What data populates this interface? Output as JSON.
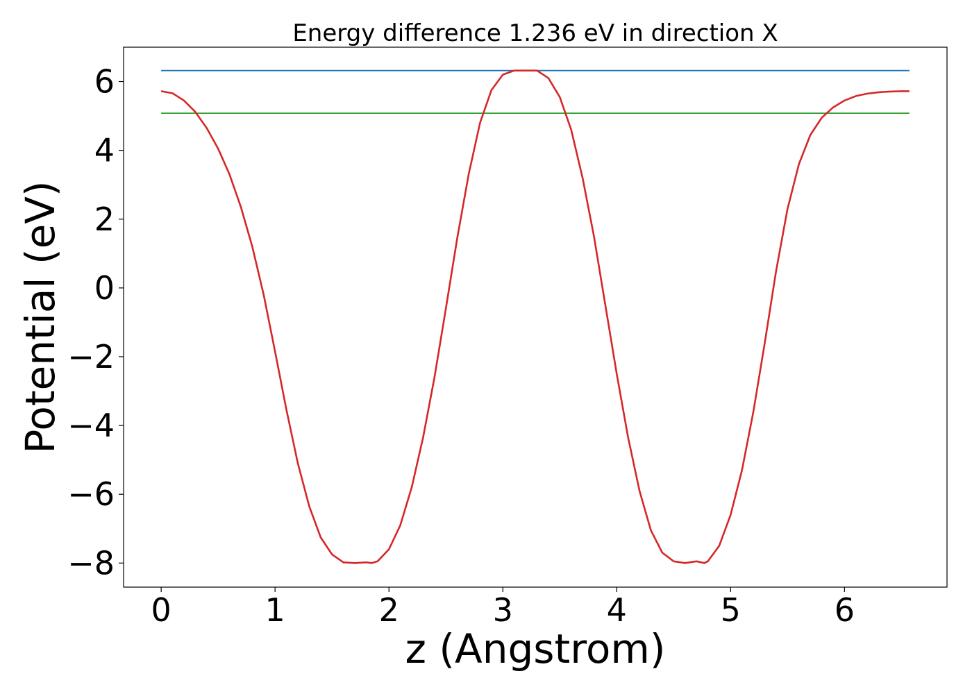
{
  "chart_data": {
    "type": "line",
    "title": "Energy difference 1.236 eV in direction X",
    "xlabel": "z (Angstrom)",
    "ylabel": "Potential (eV)",
    "xlim": [
      -0.33,
      6.9
    ],
    "ylim": [
      -8.7,
      7.0
    ],
    "xticks": [
      0,
      1,
      2,
      3,
      4,
      5,
      6
    ],
    "yticks": [
      6,
      4,
      2,
      0,
      -2,
      -4,
      -6,
      -8
    ],
    "xtick_labels": [
      "0",
      "1",
      "2",
      "3",
      "4",
      "5",
      "6"
    ],
    "ytick_labels": [
      "6",
      "4",
      "2",
      "0",
      "−2",
      "−4",
      "−6",
      "−8"
    ],
    "grid": false,
    "legend": "none",
    "series": [
      {
        "color": "#d62728",
        "x": [
          0.0,
          0.1,
          0.2,
          0.3,
          0.4,
          0.5,
          0.6,
          0.7,
          0.8,
          0.9,
          1.0,
          1.1,
          1.2,
          1.3,
          1.4,
          1.5,
          1.6,
          1.7,
          1.8,
          1.85,
          1.9,
          2.0,
          2.1,
          2.2,
          2.3,
          2.4,
          2.5,
          2.6,
          2.7,
          2.8,
          2.9,
          3.0,
          3.1,
          3.2,
          3.3,
          3.4,
          3.5,
          3.6,
          3.7,
          3.8,
          3.9,
          4.0,
          4.1,
          4.2,
          4.3,
          4.4,
          4.5,
          4.6,
          4.7,
          4.77,
          4.8,
          4.9,
          5.0,
          5.1,
          5.2,
          5.3,
          5.4,
          5.5,
          5.6,
          5.7,
          5.8,
          5.9,
          6.0,
          6.1,
          6.2,
          6.3,
          6.4,
          6.5,
          6.57
        ],
        "y": [
          5.72,
          5.66,
          5.45,
          5.12,
          4.65,
          4.05,
          3.3,
          2.35,
          1.2,
          -0.2,
          -1.85,
          -3.55,
          -5.1,
          -6.35,
          -7.25,
          -7.75,
          -7.98,
          -8.0,
          -7.98,
          -8.0,
          -7.95,
          -7.6,
          -6.9,
          -5.8,
          -4.35,
          -2.6,
          -0.6,
          1.45,
          3.3,
          4.8,
          5.75,
          6.2,
          6.32,
          6.32,
          6.32,
          6.1,
          5.55,
          4.6,
          3.2,
          1.5,
          -0.5,
          -2.5,
          -4.35,
          -5.9,
          -7.05,
          -7.7,
          -7.95,
          -8.0,
          -7.95,
          -8.0,
          -7.95,
          -7.5,
          -6.6,
          -5.3,
          -3.6,
          -1.6,
          0.5,
          2.3,
          3.6,
          4.45,
          4.95,
          5.25,
          5.45,
          5.58,
          5.65,
          5.69,
          5.71,
          5.72,
          5.72
        ]
      },
      {
        "color": "#1f77b4",
        "x": [
          0.0,
          6.57
        ],
        "y": [
          6.32,
          6.32
        ]
      },
      {
        "color": "#2ca02c",
        "x": [
          0.0,
          6.57
        ],
        "y": [
          5.08,
          5.08
        ]
      }
    ]
  }
}
